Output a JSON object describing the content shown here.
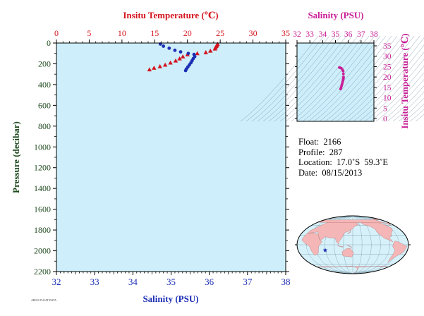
{
  "colors": {
    "temperature": "#d4141e",
    "salinity": "#1c2fb4",
    "pressure_axis": "#1f4a1f",
    "ts_diagram": "#c81e96",
    "plot_background": "#cdeefa",
    "land": "#f4b6b6",
    "ocean": "#d6f1fa"
  },
  "info": {
    "float": "Float:  2166",
    "profile": "Profile:  287",
    "location": "Location:  17.0˚S  59.3˚E",
    "date": "Date:  08/15/2013"
  },
  "footer_text": "ARGO FLOAT DATA",
  "chart_data": [
    {
      "type": "scatter",
      "name": "main-profile",
      "top_axis_label": "Insitu Temperature (℃)",
      "bottom_axis_label": "Salinity (PSU)",
      "left_axis_label": "Pressure (decibar)",
      "temperature_ticks": [
        "0",
        "5",
        "10",
        "15",
        "20",
        "25",
        "30",
        "35"
      ],
      "salinity_ticks": [
        "32",
        "33",
        "34",
        "35",
        "36",
        "37",
        "38"
      ],
      "pressure_ticks": [
        "0",
        "200",
        "400",
        "600",
        "800",
        "1000",
        "1200",
        "1400",
        "1600",
        "1800",
        "2000",
        "2200"
      ],
      "temperature_range": [
        0,
        35
      ],
      "salinity_range": [
        32,
        38
      ],
      "pressure_range": [
        0,
        2200
      ],
      "pressure_inverted": true,
      "grid": false,
      "series": [
        {
          "marker": "triangle",
          "quantity": "temperature",
          "points": [
            {
              "t": 24.6,
              "p": 10
            },
            {
              "t": 24.5,
              "p": 20
            },
            {
              "t": 24.4,
              "p": 30
            },
            {
              "t": 24.3,
              "p": 40
            },
            {
              "t": 24.2,
              "p": 55
            },
            {
              "t": 23.5,
              "p": 75
            },
            {
              "t": 22.8,
              "p": 90
            },
            {
              "t": 21.5,
              "p": 100
            },
            {
              "t": 20.0,
              "p": 110
            },
            {
              "t": 19.3,
              "p": 130
            },
            {
              "t": 18.8,
              "p": 150
            },
            {
              "t": 18.2,
              "p": 170
            },
            {
              "t": 17.4,
              "p": 190
            },
            {
              "t": 16.6,
              "p": 210
            },
            {
              "t": 15.8,
              "p": 225
            },
            {
              "t": 14.9,
              "p": 240
            },
            {
              "t": 14.2,
              "p": 255
            }
          ]
        },
        {
          "marker": "circle",
          "quantity": "salinity",
          "points": [
            {
              "s": 34.72,
              "p": 10
            },
            {
              "s": 34.8,
              "p": 30
            },
            {
              "s": 34.95,
              "p": 50
            },
            {
              "s": 35.1,
              "p": 70
            },
            {
              "s": 35.25,
              "p": 85
            },
            {
              "s": 35.45,
              "p": 100
            },
            {
              "s": 35.6,
              "p": 110
            },
            {
              "s": 35.62,
              "p": 130
            },
            {
              "s": 35.58,
              "p": 150
            },
            {
              "s": 35.55,
              "p": 170
            },
            {
              "s": 35.52,
              "p": 190
            },
            {
              "s": 35.48,
              "p": 210
            },
            {
              "s": 35.44,
              "p": 230
            },
            {
              "s": 35.4,
              "p": 250
            },
            {
              "s": 35.38,
              "p": 265
            }
          ]
        }
      ]
    },
    {
      "type": "scatter",
      "name": "ts-diagram",
      "top_axis_label": "Salinity (PSU)",
      "right_axis_label": "Insitu Temperature (℃)",
      "x_ticks": [
        "32",
        "33",
        "34",
        "35",
        "36",
        "37",
        "38"
      ],
      "y_ticks": [
        "0",
        "5",
        "10",
        "15",
        "20",
        "25",
        "30",
        "35"
      ],
      "x_range": [
        32,
        38
      ],
      "y_range": [
        0,
        35
      ],
      "density_contours": true,
      "points": [
        {
          "s": 35.3,
          "t": 24.6
        },
        {
          "s": 35.38,
          "t": 24.4
        },
        {
          "s": 35.46,
          "t": 24.2
        },
        {
          "s": 35.55,
          "t": 23.5
        },
        {
          "s": 35.6,
          "t": 22.8
        },
        {
          "s": 35.62,
          "t": 21.5
        },
        {
          "s": 35.63,
          "t": 20.0
        },
        {
          "s": 35.62,
          "t": 19.3
        },
        {
          "s": 35.6,
          "t": 18.8
        },
        {
          "s": 35.58,
          "t": 18.2
        },
        {
          "s": 35.55,
          "t": 17.4
        },
        {
          "s": 35.52,
          "t": 16.6
        },
        {
          "s": 35.48,
          "t": 15.8
        },
        {
          "s": 35.44,
          "t": 14.9
        },
        {
          "s": 35.4,
          "t": 14.2
        }
      ]
    },
    {
      "type": "map",
      "name": "location-map",
      "marker": {
        "lat": -17.0,
        "lon": 59.3,
        "symbol": "star"
      }
    }
  ]
}
